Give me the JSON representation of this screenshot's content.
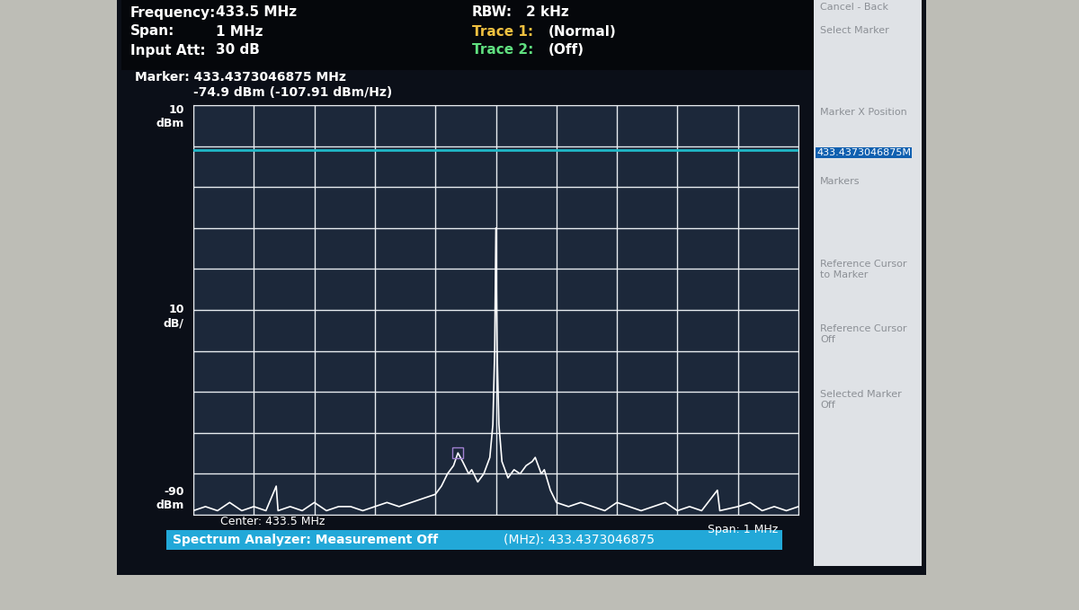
{
  "chart_data": {
    "type": "line",
    "x": [
      433.0,
      433.02,
      433.04,
      433.06,
      433.08,
      433.1,
      433.12,
      433.137,
      433.14,
      433.16,
      433.18,
      433.2,
      433.22,
      433.24,
      433.26,
      433.28,
      433.3,
      433.32,
      433.34,
      433.36,
      433.38,
      433.4,
      433.41,
      433.42,
      433.43,
      433.4373046875,
      433.445,
      433.455,
      433.46,
      433.47,
      433.48,
      433.49,
      433.495,
      433.498,
      433.5,
      433.502,
      433.505,
      433.51,
      433.52,
      433.53,
      433.54,
      433.55,
      433.56,
      433.565,
      433.575,
      433.58,
      433.59,
      433.6,
      433.62,
      433.64,
      433.66,
      433.68,
      433.7,
      433.72,
      433.74,
      433.76,
      433.78,
      433.8,
      433.82,
      433.84,
      433.866,
      433.87,
      433.9,
      433.92,
      433.94,
      433.96,
      433.98,
      434.0
    ],
    "values": [
      -89,
      -88,
      -89,
      -87,
      -89,
      -88,
      -89,
      -83,
      -89,
      -88,
      -89,
      -87,
      -89,
      -88,
      -88,
      -89,
      -88,
      -87,
      -88,
      -87,
      -86,
      -85,
      -83,
      -80,
      -78,
      -74.9,
      -77,
      -80,
      -79,
      -82,
      -80,
      -76,
      -68,
      -50,
      -20,
      -50,
      -68,
      -77,
      -81,
      -79,
      -80,
      -78,
      -77,
      -76,
      -80,
      -79,
      -84,
      -87,
      -88,
      -87,
      -88,
      -89,
      -87,
      -88,
      -89,
      -88,
      -87,
      -89,
      -88,
      -89,
      -84,
      -89,
      -88,
      -87,
      -89,
      -88,
      -89,
      -88
    ],
    "color": "#ffffff",
    "xlim": [
      433.0,
      434.0
    ],
    "xticks": [
      433.0,
      433.1,
      433.2,
      433.3,
      433.4,
      433.5,
      433.6,
      433.7,
      433.8,
      433.9,
      434.0
    ],
    "ylim": [
      -90,
      10
    ],
    "yticks": [
      -90,
      -80,
      -70,
      -60,
      -50,
      -40,
      -30,
      -20,
      -10,
      0,
      10
    ],
    "grid": true,
    "tick_labels": false,
    "reference_line": {
      "value": -1,
      "color": "#20b8c8"
    },
    "marker_point": {
      "x": 433.4373046875,
      "y": -74.9,
      "color": "#a080d0"
    }
  },
  "screen": {
    "header": [
      {
        "label": "Frequency:",
        "value": "433.5 MHz"
      },
      {
        "label": "Span:",
        "value": "1 MHz"
      },
      {
        "label": "Input Att:",
        "value": "30 dB"
      },
      {
        "label": "RBW:",
        "value": "2 kHz"
      },
      {
        "label": "Trace 1:",
        "value": "(Normal)"
      },
      {
        "label": "Trace 2:",
        "value": "(Off)"
      }
    ],
    "marker_line1": "Marker: 433.4373046875 MHz",
    "marker_line2": "-74.9 dBm (-107.91 dBm/Hz)",
    "y_top_label": "10\ndBm",
    "y_scale_label": "10\ndB/",
    "y_bottom_label": "-90\ndBm",
    "center_label": "Center: 433.5 MHz",
    "span_label": "Span: 1 MHz",
    "status_left": "Spectrum Analyzer: Measurement Off",
    "status_right": "(MHz): 433.4373046875",
    "menu": [
      "Cancel - Back",
      "Select Marker",
      "Marker X Position",
      "433.4373046875M",
      "Markers",
      "Reference Cursor\nto Marker",
      "Reference Cursor\nOff",
      "Selected Marker\nOff"
    ]
  }
}
